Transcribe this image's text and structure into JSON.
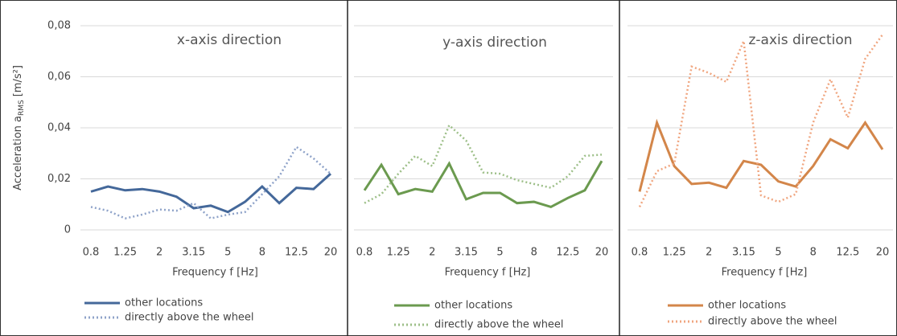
{
  "chart_data": [
    {
      "type": "line",
      "title": "x-axis direction",
      "y_label": {
        "text": "Acceleration a",
        "sub": "RMS",
        "unit": "[m/s²]"
      },
      "x_label": "Frequency f [Hz]",
      "categories": [
        "0.8",
        null,
        "1.25",
        null,
        "2",
        null,
        "3.15",
        null,
        "5",
        null,
        "8",
        null,
        "12.5",
        null,
        "20"
      ],
      "series": [
        {
          "name": "other locations",
          "color": "#44689a",
          "dash": "solid",
          "values": [
            0.015,
            0.017,
            0.0155,
            0.016,
            0.015,
            0.013,
            0.0085,
            0.0095,
            0.007,
            0.011,
            0.017,
            0.0105,
            0.0165,
            0.016,
            0.022
          ]
        },
        {
          "name": "directly above the wheel",
          "color": "#8fa3c9",
          "dash": "dotted",
          "values": [
            0.009,
            0.0075,
            0.0045,
            0.006,
            0.008,
            0.0075,
            0.0105,
            0.0045,
            0.006,
            0.007,
            0.014,
            0.021,
            0.0325,
            0.028,
            0.022
          ]
        }
      ],
      "ylim": [
        0,
        0.08
      ],
      "yticks": [
        0,
        {
          "value": 0.02,
          "label": "0,02"
        },
        {
          "value": 0.04,
          "label": "0,04"
        },
        {
          "value": 0.06,
          "label": "0,06"
        },
        {
          "value": 0.08,
          "label": "0,08"
        }
      ],
      "grid": true
    },
    {
      "type": "line",
      "title": "y-axis direction",
      "x_label": "Frequency f [Hz]",
      "categories": [
        "0.8",
        null,
        "1.25",
        null,
        "2",
        null,
        "3.15",
        null,
        "5",
        null,
        "8",
        null,
        "12.5",
        null,
        "20"
      ],
      "series": [
        {
          "name": "other locations",
          "color": "#6b9a4f",
          "dash": "solid",
          "values": [
            0.0155,
            0.0255,
            0.014,
            0.016,
            0.015,
            0.026,
            0.012,
            0.0145,
            0.0145,
            0.0105,
            0.011,
            0.009,
            0.0125,
            0.0155,
            0.027
          ]
        },
        {
          "name": "directly above the wheel",
          "color": "#9dbf88",
          "dash": "dotted",
          "values": [
            0.0105,
            0.014,
            0.022,
            0.029,
            0.025,
            0.041,
            0.035,
            0.0225,
            0.022,
            0.0195,
            0.018,
            0.0165,
            0.021,
            0.029,
            0.0295
          ]
        }
      ],
      "ylim": [
        0,
        0.08
      ],
      "grid": true
    },
    {
      "type": "line",
      "title": "z-axis direction",
      "x_label": "Frequency f [Hz]",
      "categories": [
        "0.8",
        null,
        "1.25",
        null,
        "2",
        null,
        "3.15",
        null,
        "5",
        null,
        "8",
        null,
        "12.5",
        null,
        "20"
      ],
      "series": [
        {
          "name": "other locations",
          "color": "#d3864a",
          "dash": "solid",
          "values": [
            0.015,
            0.042,
            0.025,
            0.018,
            0.0185,
            0.0165,
            0.027,
            0.0255,
            0.019,
            0.017,
            0.025,
            0.0355,
            0.032,
            0.042,
            0.0315
          ]
        },
        {
          "name": "directly above the wheel",
          "color": "#f0a680",
          "dash": "dotted",
          "values": [
            0.009,
            0.023,
            0.026,
            0.064,
            0.0615,
            0.058,
            0.074,
            0.0135,
            0.011,
            0.014,
            0.042,
            0.059,
            0.044,
            0.067,
            0.0765
          ]
        }
      ],
      "ylim": [
        0,
        0.08
      ],
      "grid": true
    }
  ]
}
